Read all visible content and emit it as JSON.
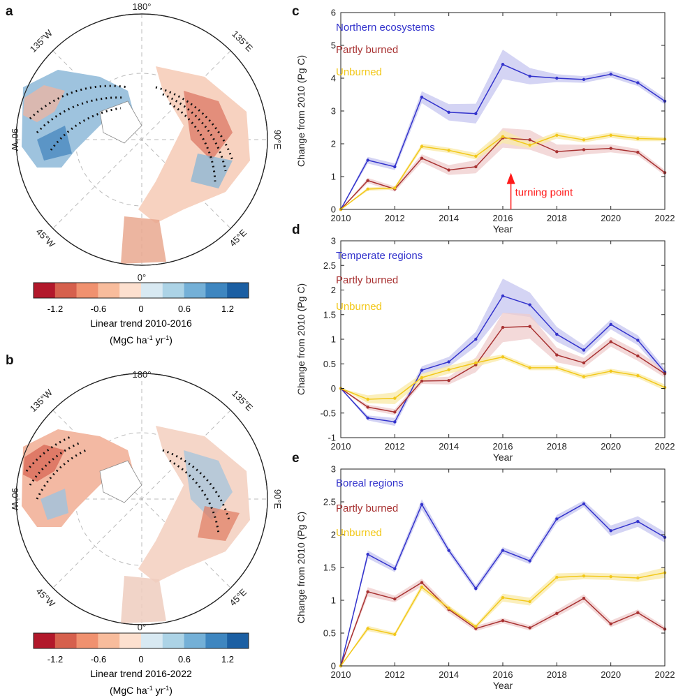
{
  "maps": [
    {
      "panel": "a",
      "lon_labels": {
        "top": "180°",
        "left": "90°W",
        "right": "90°E",
        "bottom": "0°",
        "ul": "135°W",
        "ur": "135°E",
        "ll": "45°W",
        "lr": "45°E"
      },
      "colorbar": {
        "colors": [
          "#b2182b",
          "#d6604d",
          "#f0916f",
          "#f8bc9c",
          "#fde0cf",
          "#d8e9f2",
          "#acd3e6",
          "#74b0d7",
          "#3e86c0",
          "#1b5fa3"
        ],
        "ticks": [
          "-1.2",
          "-0.6",
          "0",
          "0.6",
          "1.2"
        ],
        "label": "Linear trend 2010-2016",
        "units": {
          "pre": "(MgC ha",
          "sup1": "-1",
          "mid": " yr",
          "sup2": "-1",
          "post": ")"
        }
      }
    },
    {
      "panel": "b",
      "lon_labels": {
        "top": "180°",
        "left": "90°W",
        "right": "90°E",
        "bottom": "0°",
        "ul": "135°W",
        "ur": "135°E",
        "ll": "45°W",
        "lr": "45°E"
      },
      "colorbar": {
        "colors": [
          "#b2182b",
          "#d6604d",
          "#f0916f",
          "#f8bc9c",
          "#fde0cf",
          "#d8e9f2",
          "#acd3e6",
          "#74b0d7",
          "#3e86c0",
          "#1b5fa3"
        ],
        "ticks": [
          "-1.2",
          "-0.6",
          "0",
          "0.6",
          "1.2"
        ],
        "label": "Linear trend 2016-2022",
        "units": {
          "pre": "(MgC ha",
          "sup1": "-1",
          "mid": " yr",
          "sup2": "-1",
          "post": ")"
        }
      }
    }
  ],
  "chart_data": [
    {
      "panel": "c",
      "type": "line",
      "x": [
        2010,
        2011,
        2012,
        2013,
        2014,
        2015,
        2016,
        2017,
        2018,
        2019,
        2020,
        2021,
        2022
      ],
      "xticks": [
        "2010",
        "2012",
        "2014",
        "2016",
        "2018",
        "2020",
        "2022"
      ],
      "xlabel": "Year",
      "ylabel": "Change from 2010 (Pg C)",
      "ylim": [
        0,
        6
      ],
      "yticks": [
        "0",
        "1",
        "2",
        "3",
        "4",
        "5",
        "6"
      ],
      "series": [
        {
          "name": "Northern ecosystems",
          "color": "#3333cc",
          "band": "#c5c5f0",
          "values": [
            0,
            1.5,
            1.3,
            3.42,
            2.96,
            2.92,
            4.42,
            4.06,
            4.0,
            3.96,
            4.12,
            3.86,
            3.3
          ],
          "spread": [
            0,
            0.1,
            0.1,
            0.18,
            0.25,
            0.3,
            0.45,
            0.25,
            0.12,
            0.1,
            0.1,
            0.1,
            0.1
          ]
        },
        {
          "name": "Partly burned",
          "color": "#a83232",
          "band": "#efcccc",
          "values": [
            0,
            0.88,
            0.62,
            1.56,
            1.2,
            1.3,
            2.18,
            2.12,
            1.76,
            1.82,
            1.86,
            1.74,
            1.12
          ],
          "spread": [
            0,
            0.08,
            0.08,
            0.12,
            0.15,
            0.2,
            0.3,
            0.3,
            0.22,
            0.15,
            0.12,
            0.1,
            0.08
          ]
        },
        {
          "name": "Unburned",
          "color": "#f2c81a",
          "band": "#faeaa5",
          "values": [
            0,
            0.62,
            0.65,
            1.92,
            1.8,
            1.62,
            2.22,
            1.96,
            2.26,
            2.12,
            2.26,
            2.16,
            2.14
          ],
          "spread": [
            0,
            0.05,
            0.05,
            0.08,
            0.08,
            0.1,
            0.2,
            0.1,
            0.1,
            0.08,
            0.08,
            0.08,
            0.06
          ]
        }
      ],
      "annotation": {
        "text": "turning point",
        "x": 2016.3,
        "y_from": 0,
        "y_to": 1.05,
        "color": "#ff1a1a"
      }
    },
    {
      "panel": "d",
      "type": "line",
      "x": [
        2010,
        2011,
        2012,
        2013,
        2014,
        2015,
        2016,
        2017,
        2018,
        2019,
        2020,
        2021,
        2022
      ],
      "xticks": [
        "2010",
        "2012",
        "2014",
        "2016",
        "2018",
        "2020",
        "2022"
      ],
      "xlabel": "Year",
      "ylabel": "Change from 2010 (Pg C)",
      "ylim": [
        -1,
        3
      ],
      "yticks": [
        "-1",
        "-0.5",
        "0",
        "0.5",
        "1",
        "1.5",
        "2",
        "2.5",
        "3"
      ],
      "series": [
        {
          "name": "Temperate regions",
          "color": "#3333cc",
          "band": "#c5c5f0",
          "values": [
            0,
            -0.6,
            -0.68,
            0.37,
            0.54,
            1.0,
            1.88,
            1.7,
            1.1,
            0.78,
            1.3,
            0.98,
            0.33
          ],
          "spread": [
            0,
            0.05,
            0.08,
            0.08,
            0.1,
            0.15,
            0.35,
            0.25,
            0.15,
            0.1,
            0.1,
            0.1,
            0.08
          ]
        },
        {
          "name": "Partly burned",
          "color": "#a83232",
          "band": "#efcccc",
          "values": [
            0,
            -0.38,
            -0.48,
            0.15,
            0.16,
            0.48,
            1.24,
            1.26,
            0.68,
            0.52,
            0.95,
            0.66,
            0.3
          ],
          "spread": [
            0,
            0.05,
            0.06,
            0.06,
            0.08,
            0.15,
            0.3,
            0.25,
            0.15,
            0.1,
            0.1,
            0.1,
            0.08
          ]
        },
        {
          "name": "Unburned",
          "color": "#f2c81a",
          "band": "#faeaa5",
          "values": [
            0,
            -0.22,
            -0.2,
            0.22,
            0.38,
            0.52,
            0.64,
            0.42,
            0.42,
            0.24,
            0.35,
            0.26,
            0.02
          ],
          "spread": [
            0,
            0.08,
            0.12,
            0.08,
            0.08,
            0.08,
            0.05,
            0.05,
            0.05,
            0.05,
            0.05,
            0.05,
            0.06
          ]
        }
      ]
    },
    {
      "panel": "e",
      "type": "line",
      "x": [
        2010,
        2011,
        2012,
        2013,
        2014,
        2015,
        2016,
        2017,
        2018,
        2019,
        2020,
        2021,
        2022
      ],
      "xticks": [
        "2010",
        "2012",
        "2014",
        "2016",
        "2018",
        "2020",
        "2022"
      ],
      "xlabel": "Year",
      "ylabel": "Change from 2010 (Pg C)",
      "ylim": [
        0,
        3
      ],
      "yticks": [
        "0",
        "0.5",
        "1",
        "1.5",
        "2",
        "2.5",
        "3"
      ],
      "series": [
        {
          "name": "Boreal regions",
          "color": "#3333cc",
          "band": "#c5c5f0",
          "values": [
            0,
            1.7,
            1.48,
            2.46,
            1.76,
            1.18,
            1.76,
            1.6,
            2.24,
            2.47,
            2.06,
            2.2,
            1.96
          ],
          "spread": [
            0,
            0.06,
            0.05,
            0.08,
            0.05,
            0.05,
            0.05,
            0.05,
            0.06,
            0.05,
            0.08,
            0.08,
            0.08
          ]
        },
        {
          "name": "Partly burned",
          "color": "#a83232",
          "band": "#efcccc",
          "values": [
            0,
            1.13,
            1.02,
            1.27,
            0.86,
            0.57,
            0.69,
            0.58,
            0.8,
            1.03,
            0.64,
            0.81,
            0.56
          ],
          "spread": [
            0,
            0.07,
            0.05,
            0.06,
            0.05,
            0.04,
            0.04,
            0.04,
            0.05,
            0.06,
            0.05,
            0.05,
            0.04
          ]
        },
        {
          "name": "Unburned",
          "color": "#f2c81a",
          "band": "#faeaa5",
          "values": [
            0,
            0.57,
            0.48,
            1.2,
            0.88,
            0.6,
            1.04,
            0.98,
            1.35,
            1.37,
            1.36,
            1.34,
            1.42
          ],
          "spread": [
            0,
            0.04,
            0.03,
            0.05,
            0.04,
            0.03,
            0.06,
            0.06,
            0.06,
            0.05,
            0.05,
            0.06,
            0.08
          ]
        }
      ]
    }
  ]
}
